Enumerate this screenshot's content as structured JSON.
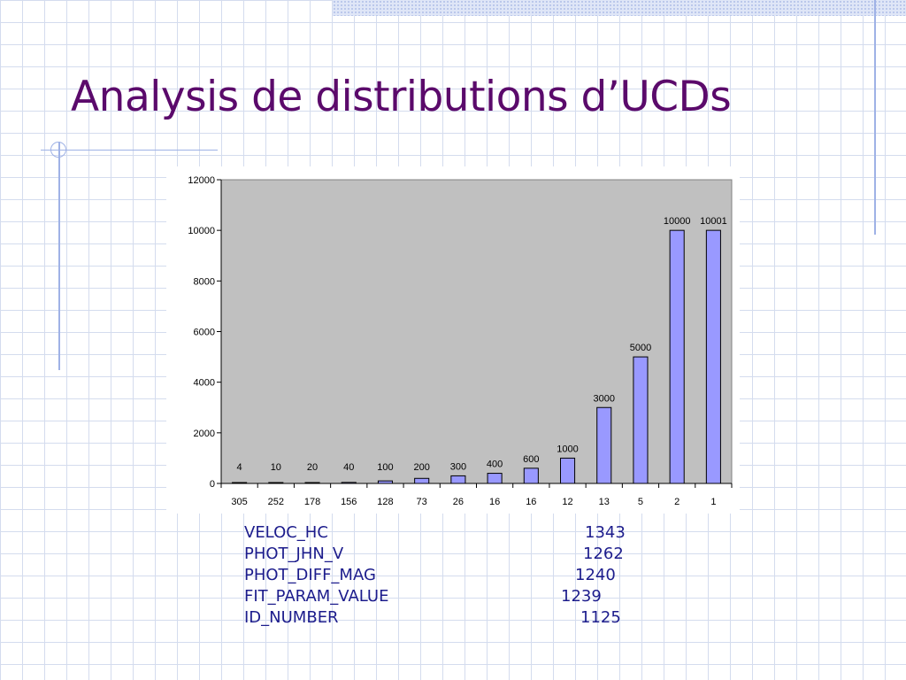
{
  "slide": {
    "title": "Analysis de distributions d’UCDs"
  },
  "colors": {
    "title": "#5b0a6b",
    "list_text": "#1c1c8c",
    "bar_fill": "#9999ff",
    "plot_background": "#c0c0c0",
    "accent_rules": "#9fb2e6"
  },
  "chart_data": {
    "type": "bar",
    "categories": [
      "305",
      "252",
      "178",
      "156",
      "128",
      "73",
      "26",
      "16",
      "16",
      "12",
      "13",
      "5",
      "2",
      "1"
    ],
    "values": [
      4,
      10,
      20,
      40,
      100,
      200,
      300,
      400,
      600,
      1000,
      3000,
      5000,
      10000,
      10001
    ],
    "data_labels": [
      "4",
      "10",
      "20",
      "40",
      "100",
      "200",
      "300",
      "400",
      "600",
      "1000",
      "3000",
      "5000",
      "10000",
      "10001"
    ],
    "y_ticks": [
      0,
      2000,
      4000,
      6000,
      8000,
      10000,
      12000
    ],
    "ylim": [
      0,
      12000
    ],
    "title": "",
    "xlabel": "",
    "ylabel": "",
    "grid": false,
    "legend": "none"
  },
  "ucd_list": [
    {
      "name": "VELOC_HC",
      "count": "1343"
    },
    {
      "name": "PHOT_JHN_V",
      "count": "1262"
    },
    {
      "name": "PHOT_DIFF_MAG",
      "count": "1240"
    },
    {
      "name": "FIT_PARAM_VALUE",
      "count": "1239"
    },
    {
      "name": "ID_NUMBER",
      "count": "1125"
    }
  ]
}
